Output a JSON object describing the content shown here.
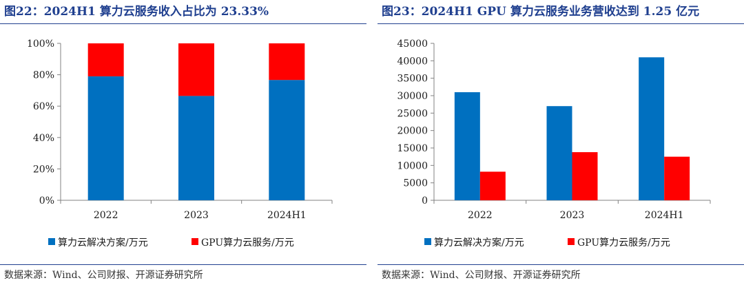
{
  "colors": {
    "title": "#1f3f8f",
    "blue": "#0070c0",
    "red": "#ff0000",
    "axis": "#808080"
  },
  "charts": [
    {
      "title": "图22：2024H1 算力云服务收入占比为 23.33%",
      "source": "数据来源：Wind、公司财报、开源证券研究所"
    },
    {
      "title": "图23：2024H1 GPU 算力云服务业务营收达到 1.25 亿元",
      "source": "数据来源：Wind、公司财报、开源证券研究所"
    }
  ],
  "chart_data": [
    {
      "type": "bar",
      "stacked": true,
      "title": "图22：2024H1 算力云服务收入占比为 23.33%",
      "categories": [
        "2022",
        "2023",
        "2024H1"
      ],
      "series": [
        {
          "name": "算力云解决方案/万元",
          "color": "#0070c0",
          "values": [
            79,
            66.5,
            76.67
          ]
        },
        {
          "name": "GPU算力云服务/万元",
          "color": "#ff0000",
          "values": [
            21,
            33.5,
            23.33
          ]
        }
      ],
      "ylim": [
        0,
        100
      ],
      "yticks": [
        0,
        20,
        40,
        60,
        80,
        100
      ],
      "ytick_labels": [
        "0%",
        "20%",
        "40%",
        "60%",
        "80%",
        "100%"
      ],
      "legend": "bottom",
      "grid": false
    },
    {
      "type": "bar",
      "stacked": false,
      "title": "图23：2024H1 GPU 算力云服务业务营收达到 1.25 亿元",
      "categories": [
        "2022",
        "2023",
        "2024H1"
      ],
      "series": [
        {
          "name": "算力云解决方案/万元",
          "color": "#0070c0",
          "values": [
            31000,
            27000,
            41000
          ]
        },
        {
          "name": "GPU算力云服务/万元",
          "color": "#ff0000",
          "values": [
            8200,
            13800,
            12500
          ]
        }
      ],
      "ylim": [
        0,
        45000
      ],
      "yticks": [
        0,
        5000,
        10000,
        15000,
        20000,
        25000,
        30000,
        35000,
        40000,
        45000
      ],
      "ytick_labels": [
        "0",
        "5000",
        "10000",
        "15000",
        "20000",
        "25000",
        "30000",
        "35000",
        "40000",
        "45000"
      ],
      "legend": "bottom",
      "grid": false
    }
  ]
}
